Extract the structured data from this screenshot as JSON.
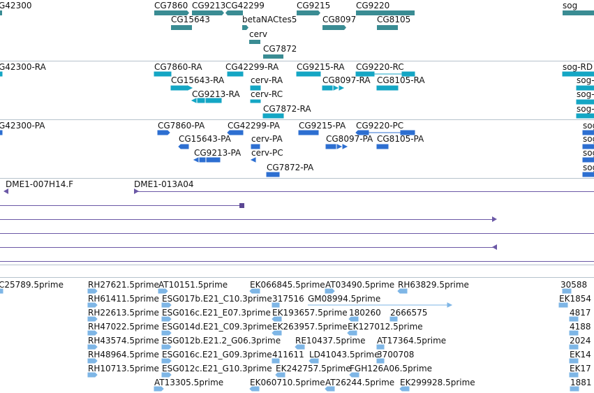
{
  "colors": {
    "gene": "#3a8c93",
    "transcript": "#14a6c4",
    "polypeptide": "#2d6fd1",
    "clone": "#6b58a6",
    "est": "#7eb6e6",
    "divider": "#b6c2cc"
  },
  "gene_track": {
    "labels": [
      "G42300",
      "CG7860",
      "CG9213",
      "CG42299",
      "CG9215",
      "CG9220",
      "sog",
      "CG15643",
      "betaNACtes5",
      "CG8097",
      "CG8105",
      "cerv",
      "CG7872"
    ]
  },
  "transcript_track": {
    "labels": [
      "G42300-RA",
      "CG7860-RA",
      "CG42299-RA",
      "CG9215-RA",
      "CG9220-RC",
      "sog-RD",
      "CG15643-RA",
      "cerv-RA",
      "CG8097-RA",
      "CG8105-RA",
      "sog-",
      "CG9213-RA",
      "cerv-RC",
      "sog-",
      "CG7872-RA",
      "sog-"
    ]
  },
  "polypeptide_track": {
    "labels": [
      "G42300-PA",
      "CG7860-PA",
      "CG42299-PA",
      "CG9215-PA",
      "CG9220-PC",
      "sog",
      "CG15643-PA",
      "cerv-PA",
      "CG8097-PA",
      "CG8105-PA",
      "sog",
      "CG9213-PA",
      "cerv-PC",
      "sog",
      "CG7872-PA",
      "sog"
    ]
  },
  "clone_track": {
    "labels": [
      "DME1-007H14.F",
      "DME1-013A04"
    ]
  },
  "est_track": {
    "labels": [
      "C25789.5prime",
      "RH27621.5prime",
      "AT10151.5prime",
      "EK066845.5prime",
      "AT03490.5prime",
      "RH63829.5prime",
      "30588",
      "RH61411.5prime",
      "ESG017b.E21_C10.3prime",
      "317516",
      "GM08994.5prime",
      "EK1854",
      "RH22613.5prime",
      "ESG016c.E21_E07.3prime",
      "EK193657.5prime",
      "180260",
      "2666575",
      "4817",
      "RH47022.5prime",
      "ESG014d.E21_C09.3prime",
      "EK263957.5prime",
      "EK127012.5prime",
      "4188",
      "RH43574.5prime",
      "ESG012b.E21.2_G06.3prime",
      "RE10437.5prime",
      "AT17364.5prime",
      "2024",
      "RH48964.5prime",
      "ESG016c.E21_G09.3prime",
      "411611",
      "LD41043.5prime",
      "3700708",
      "EK14",
      "RH10713.5prime",
      "ESG012c.E21_G10.3prime",
      "EK242757.5prime",
      "FGH126A06.5prime",
      "EK17",
      "AT13305.5prime",
      "EK060710.5prime",
      "AT26244.5prime",
      "EK299928.5prime",
      "1881"
    ]
  }
}
